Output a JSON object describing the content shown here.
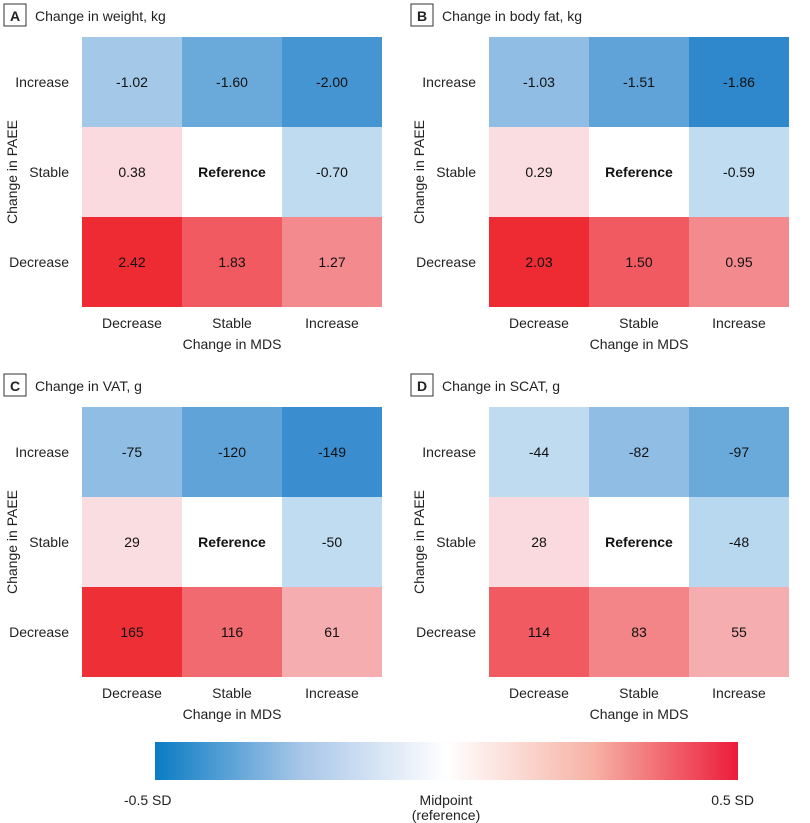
{
  "chart_data": [
    {
      "type": "heatmap",
      "panel": "A",
      "title": "Change in weight, kg",
      "xlabel": "Change in MDS",
      "ylabel": "Change in PAEE",
      "x_categories": [
        "Decrease",
        "Stable",
        "Increase"
      ],
      "y_categories": [
        "Increase",
        "Stable",
        "Decrease"
      ],
      "values": [
        [
          "-1.02",
          "-1.60",
          "-2.00"
        ],
        [
          "0.38",
          "Reference",
          "-0.70"
        ],
        [
          "2.42",
          "1.83",
          "1.27"
        ]
      ],
      "colors": [
        [
          "#a3c8e8",
          "#6aaadb",
          "#4595d3"
        ],
        [
          "#fadadf",
          "#ffffff",
          "#bedbf0"
        ],
        [
          "#ee2b33",
          "#f05a60",
          "#f38a8e"
        ]
      ]
    },
    {
      "type": "heatmap",
      "panel": "B",
      "title": "Change in body fat, kg",
      "xlabel": "Change in MDS",
      "ylabel": "Change in PAEE",
      "x_categories": [
        "Decrease",
        "Stable",
        "Increase"
      ],
      "y_categories": [
        "Increase",
        "Stable",
        "Decrease"
      ],
      "values": [
        [
          "-1.03",
          "-1.51",
          "-1.86"
        ],
        [
          "0.29",
          "Reference",
          "-0.59"
        ],
        [
          "2.03",
          "1.50",
          "0.95"
        ]
      ],
      "colors": [
        [
          "#8fbde4",
          "#5fa3d9",
          "#2f88cc"
        ],
        [
          "#fadde1",
          "#ffffff",
          "#c0dcf0"
        ],
        [
          "#ee2b33",
          "#f05a60",
          "#f38a8e"
        ]
      ]
    },
    {
      "type": "heatmap",
      "panel": "C",
      "title": "Change in VAT, g",
      "xlabel": "Change in MDS",
      "ylabel": "Change in PAEE",
      "x_categories": [
        "Decrease",
        "Stable",
        "Increase"
      ],
      "y_categories": [
        "Increase",
        "Stable",
        "Decrease"
      ],
      "values": [
        [
          "-75",
          "-120",
          "-149"
        ],
        [
          "29",
          "Reference",
          "-50"
        ],
        [
          "165",
          "116",
          "61"
        ]
      ],
      "colors": [
        [
          "#8fbde4",
          "#5fa3d9",
          "#3a8ed0"
        ],
        [
          "#fadde1",
          "#ffffff",
          "#c0dcf0"
        ],
        [
          "#ee3036",
          "#f06a70",
          "#f6adb0"
        ]
      ]
    },
    {
      "type": "heatmap",
      "panel": "D",
      "title": "Change in SCAT, g",
      "xlabel": "Change in MDS",
      "ylabel": "Change in PAEE",
      "x_categories": [
        "Decrease",
        "Stable",
        "Increase"
      ],
      "y_categories": [
        "Increase",
        "Stable",
        "Decrease"
      ],
      "values": [
        [
          "-44",
          "-82",
          "-97"
        ],
        [
          "28",
          "Reference",
          "-48"
        ],
        [
          "114",
          "83",
          "55"
        ]
      ],
      "colors": [
        [
          "#bedbf0",
          "#8fbde4",
          "#6aaadb"
        ],
        [
          "#fadadf",
          "#ffffff",
          "#b8d8ef"
        ],
        [
          "#f05a60",
          "#f38487",
          "#f6adb0"
        ]
      ]
    }
  ],
  "colorbar": {
    "left_label": "-0.5 SD",
    "mid_label_line1": "Midpoint",
    "mid_label_line2": "(reference)",
    "right_label": "0.5 SD",
    "colors": [
      "#0a7cc4",
      "#a8c6e8",
      "#ffffff",
      "#f6b3a6",
      "#ec1c3a"
    ]
  }
}
